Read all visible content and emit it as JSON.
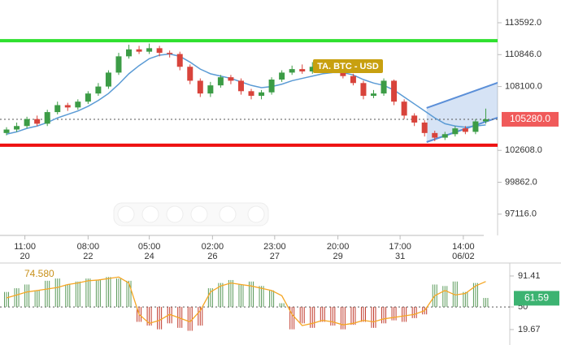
{
  "chart_data": [
    {
      "type": "candlestick",
      "annotation": "TA. BTC - USD",
      "open": [
        104100,
        104400,
        104700,
        105300,
        104900,
        105900,
        106500,
        106300,
        106800,
        107500,
        108100,
        109300,
        110700,
        111300,
        111100,
        111400,
        111000,
        110900,
        109800,
        108600,
        107500,
        108200,
        108900,
        108600,
        107700,
        107300,
        107600,
        108700,
        109300,
        109600,
        109400,
        109800,
        109500,
        109900,
        109000,
        108400,
        107300,
        107500,
        108600,
        106800,
        105600,
        105000,
        104100,
        103700,
        104000,
        104500,
        104200,
        105100
      ],
      "high": [
        104600,
        105000,
        105500,
        105600,
        106100,
        106800,
        106700,
        107000,
        107700,
        108400,
        109500,
        111000,
        111700,
        111600,
        111800,
        111600,
        111200,
        111100,
        110000,
        108800,
        108500,
        109100,
        109100,
        108800,
        107900,
        107800,
        108900,
        109500,
        109900,
        110000,
        110200,
        110000,
        110100,
        110100,
        109200,
        108600,
        107800,
        108800,
        108700,
        107000,
        105800,
        105200,
        104300,
        104200,
        104700,
        104700,
        105300,
        106200
      ],
      "low": [
        103900,
        104200,
        104500,
        104700,
        104700,
        105700,
        106000,
        106100,
        106600,
        107300,
        107900,
        109100,
        110500,
        110900,
        110900,
        110700,
        110600,
        109500,
        108300,
        107200,
        107200,
        108000,
        108300,
        107400,
        107000,
        107000,
        107400,
        108500,
        109100,
        109200,
        109200,
        109300,
        109300,
        108800,
        108200,
        107000,
        107100,
        107300,
        106500,
        105300,
        104700,
        103800,
        103400,
        103500,
        103800,
        104000,
        104000,
        104900
      ],
      "close": [
        104400,
        104700,
        105300,
        104900,
        105900,
        106500,
        106300,
        106800,
        107500,
        108100,
        109300,
        110700,
        111300,
        111100,
        111400,
        111000,
        110900,
        109800,
        108600,
        107500,
        108200,
        108900,
        108600,
        107700,
        107300,
        107600,
        108700,
        109300,
        109600,
        109400,
        109800,
        109500,
        109900,
        109000,
        108400,
        107300,
        107500,
        108600,
        106800,
        105600,
        105000,
        104100,
        103700,
        104000,
        104500,
        104200,
        105100,
        105280
      ],
      "up_color": "#3c9c46",
      "down_color": "#d8433b",
      "ma": {
        "color": "#5b9bd5",
        "values": [
          104000,
          104200,
          104500,
          104700,
          105000,
          105400,
          105700,
          106000,
          106400,
          106900,
          107500,
          108300,
          109200,
          109900,
          110500,
          110800,
          110900,
          110700,
          110200,
          109600,
          109200,
          109000,
          108800,
          108500,
          108200,
          108000,
          108100,
          108300,
          108600,
          108800,
          109000,
          109200,
          109300,
          109300,
          109100,
          108700,
          108400,
          108200,
          107800,
          107200,
          106600,
          106000,
          105400,
          104900,
          104700,
          104600,
          104700,
          104800
        ]
      },
      "levels": [
        {
          "value": 112050,
          "color": "#2ee02e"
        },
        {
          "value": 103050,
          "color": "#ee1111"
        }
      ],
      "last": {
        "value": 105280,
        "label": "105280.0",
        "color": "#f05a5a"
      },
      "channel": {
        "x": [
          41.2,
          48.6
        ],
        "upper": [
          106256,
          108561
        ],
        "lower": [
          103321,
          105557
        ],
        "color": "#5b8fd8"
      },
      "xlim": [
        -0.64,
        48.16
      ],
      "ylim": [
        95286,
        115548
      ],
      "yticks": [
        {
          "value": 113592,
          "label": "113592.0"
        },
        {
          "value": 110846,
          "label": "110846.0"
        },
        {
          "value": 108100,
          "label": "108100.0"
        },
        {
          "value": 102608,
          "label": "102608.0"
        },
        {
          "value": 99862,
          "label": "99862.0"
        },
        {
          "value": 97116,
          "label": "97116.0"
        }
      ],
      "xticks": [
        {
          "value": 1.8,
          "label": "11:00"
        },
        {
          "value": 8,
          "label": "08:00"
        },
        {
          "value": 14,
          "label": "05:00"
        },
        {
          "value": 20.2,
          "label": "02:00"
        },
        {
          "value": 26.3,
          "label": "23:00"
        },
        {
          "value": 32.5,
          "label": "20:00"
        },
        {
          "value": 38.6,
          "label": "17:00"
        },
        {
          "value": 44.8,
          "label": "14:00"
        }
      ],
      "xdates": [
        "20",
        "22",
        "24",
        "26",
        "27",
        "29",
        "31",
        "06/02"
      ]
    },
    {
      "type": "oscillator",
      "header": "74.580",
      "values": [
        70,
        75,
        80,
        72,
        85,
        88,
        80,
        84,
        88,
        86,
        90,
        88,
        85,
        30,
        25,
        20,
        28,
        22,
        18,
        25,
        75,
        82,
        86,
        80,
        84,
        78,
        72,
        55,
        20,
        28,
        22,
        30,
        25,
        20,
        26,
        30,
        22,
        28,
        32,
        30,
        35,
        40,
        80,
        78,
        84,
        70,
        82,
        62
      ],
      "up_color": "#5a9a5a",
      "down_color": "#c0392b",
      "line": {
        "color": "#f5a623",
        "values": [
          62,
          66,
          70,
          72,
          74,
          76,
          80,
          82,
          85,
          86,
          88,
          90,
          82,
          40,
          28,
          32,
          40,
          35,
          30,
          45,
          70,
          78,
          82,
          80,
          78,
          75,
          72,
          65,
          40,
          25,
          28,
          32,
          30,
          26,
          28,
          32,
          30,
          34,
          36,
          38,
          40,
          45,
          65,
          72,
          66,
          68,
          78,
          84
        ]
      },
      "baseline": 50,
      "last": {
        "value": 61.59,
        "color": "#3cb371"
      },
      "xlim": [
        -0.64,
        48.16
      ],
      "ylim": [
        -1,
        106.6
      ],
      "yticks": [
        91.41,
        50,
        19.67
      ]
    }
  ]
}
